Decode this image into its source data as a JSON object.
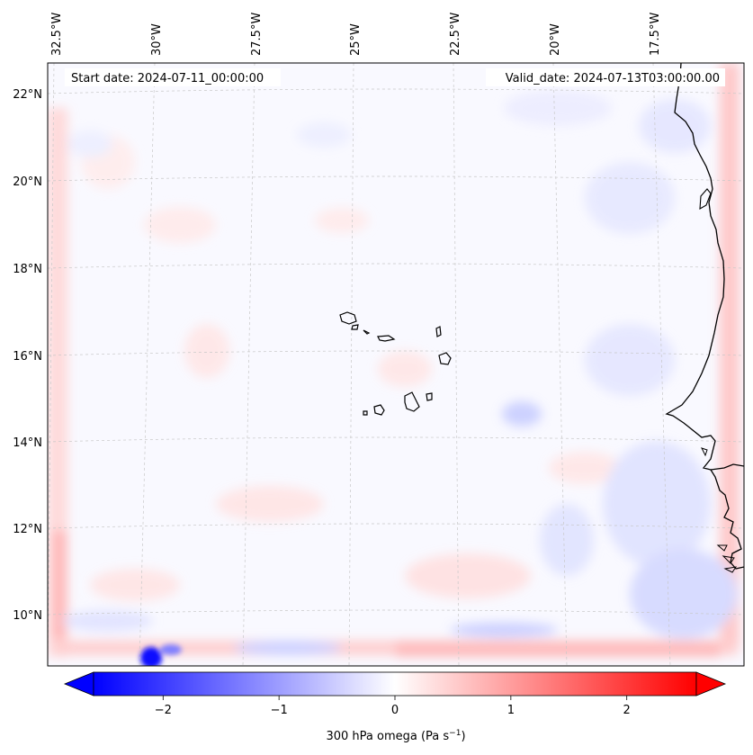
{
  "header": {
    "start_date": "Start date: 2024-07-11_00:00:00",
    "valid_date": "Valid_date: 2024-07-13T03:00:00.00"
  },
  "longitude_labels": [
    "32.5°W",
    "30°W",
    "27.5°W",
    "25°W",
    "22.5°W",
    "20°W",
    "17.5°W"
  ],
  "latitude_labels": [
    "22°N",
    "20°N",
    "18°N",
    "16°N",
    "14°N",
    "12°N",
    "10°N"
  ],
  "colorbar": {
    "label": "300 hPa omega (Pa s",
    "label_exp": "−1",
    "label_close": ")",
    "ticks": [
      "−2",
      "−1",
      "0",
      "1",
      "2"
    ],
    "tick_values": [
      -2,
      -1,
      0,
      1,
      2
    ],
    "range": [
      -2.6,
      2.6
    ],
    "colormap": "bwr",
    "color_low": "#0000ff",
    "color_mid": "#ffffff",
    "color_high": "#ff0000"
  },
  "map": {
    "field": "300 hPa omega",
    "lon_range": [
      "32.8°W",
      "15.5°W"
    ],
    "lat_range": [
      "8.9°N",
      "22.8°N"
    ],
    "gridlines": true,
    "coastline_color": "#000000"
  }
}
